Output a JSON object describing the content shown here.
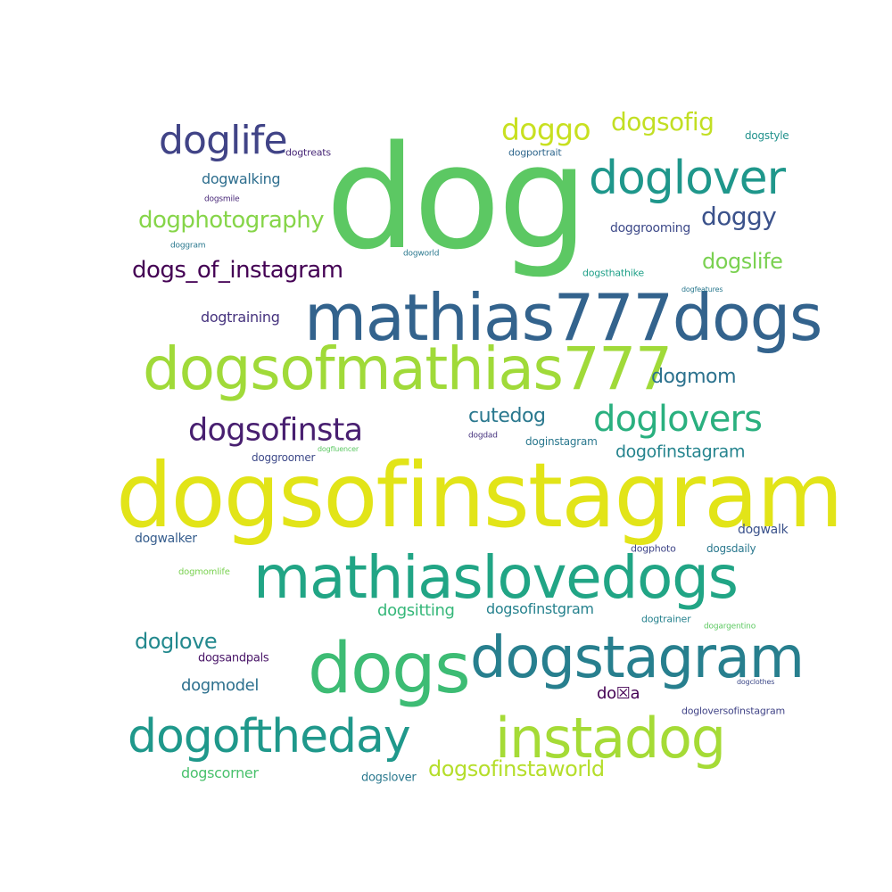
{
  "word_cloud": {
    "words": [
      {
        "text": "dog",
        "color": "#5cc863"
      },
      {
        "text": "dogsofinstagram",
        "color": "#e2e418"
      },
      {
        "text": "mathias777dogs",
        "color": "#33638d"
      },
      {
        "text": "dogsofmathias777",
        "color": "#a0da39"
      },
      {
        "text": "mathiaslovedogs",
        "color": "#21a585"
      },
      {
        "text": "dogstagram",
        "color": "#277f8e"
      },
      {
        "text": "dogs",
        "color": "#3dbc74"
      },
      {
        "text": "instadog",
        "color": "#a5db36"
      },
      {
        "text": "dogoftheday",
        "color": "#1f988b"
      },
      {
        "text": "doglover",
        "color": "#1f978b"
      },
      {
        "text": "doglife",
        "color": "#414487"
      },
      {
        "text": "doglovers",
        "color": "#2ab07f"
      },
      {
        "text": "dogsofinsta",
        "color": "#481f70"
      },
      {
        "text": "doggo",
        "color": "#c8e020"
      },
      {
        "text": "dogsofig",
        "color": "#c2df23"
      },
      {
        "text": "doggy",
        "color": "#3b528b"
      },
      {
        "text": "dogphotography",
        "color": "#86d549"
      },
      {
        "text": "dogs_of_instagram",
        "color": "#440154"
      },
      {
        "text": "dogslife",
        "color": "#7ad151"
      },
      {
        "text": "dogmom",
        "color": "#2c728e"
      },
      {
        "text": "cutedog",
        "color": "#2a788e"
      },
      {
        "text": "dogsofinstaworld",
        "color": "#b5de2b"
      },
      {
        "text": "doglove",
        "color": "#23898e"
      },
      {
        "text": "dogofinstagram",
        "color": "#25848e"
      },
      {
        "text": "dogwalking",
        "color": "#2e6e8e"
      },
      {
        "text": "dogtraining",
        "color": "#46337e"
      },
      {
        "text": "doggrooming",
        "color": "#3e4a89"
      },
      {
        "text": "dogmodel",
        "color": "#2d708e"
      },
      {
        "text": "dogsitting",
        "color": "#35b779"
      },
      {
        "text": "dogsofinstgram",
        "color": "#26828e"
      },
      {
        "text": "dogwalker",
        "color": "#365d8d"
      },
      {
        "text": "dogwalk",
        "color": "#3b528b"
      },
      {
        "text": "do☒a",
        "color": "#440154"
      },
      {
        "text": "dogscorner",
        "color": "#4ac16d"
      },
      {
        "text": "dogslover",
        "color": "#2a788e"
      },
      {
        "text": "dogloversofinstagram",
        "color": "#414487"
      },
      {
        "text": "dogsandpals",
        "color": "#481467"
      },
      {
        "text": "dogstyle",
        "color": "#21918c"
      },
      {
        "text": "dogtreats",
        "color": "#482878"
      },
      {
        "text": "dogportrait",
        "color": "#31688e"
      },
      {
        "text": "dogsthathike",
        "color": "#1fa088"
      },
      {
        "text": "doginstagram",
        "color": "#2a788e"
      },
      {
        "text": "doggroomer",
        "color": "#3e4a89"
      },
      {
        "text": "dogphoto",
        "color": "#404688"
      },
      {
        "text": "dogsdaily",
        "color": "#2a788e"
      },
      {
        "text": "dogtrainer",
        "color": "#26828e"
      },
      {
        "text": "dogmomlife",
        "color": "#7ad151"
      },
      {
        "text": "dogsmile",
        "color": "#482878"
      },
      {
        "text": "doggram",
        "color": "#2a788e"
      },
      {
        "text": "dogworld",
        "color": "#2a788e"
      },
      {
        "text": "dogfeatures",
        "color": "#2a788e"
      },
      {
        "text": "dogdad",
        "color": "#46337e"
      },
      {
        "text": "dogfluencer",
        "color": "#5cc863"
      },
      {
        "text": "dogargentino",
        "color": "#5ec962"
      },
      {
        "text": "dogclothes",
        "color": "#3e4a89"
      }
    ]
  }
}
